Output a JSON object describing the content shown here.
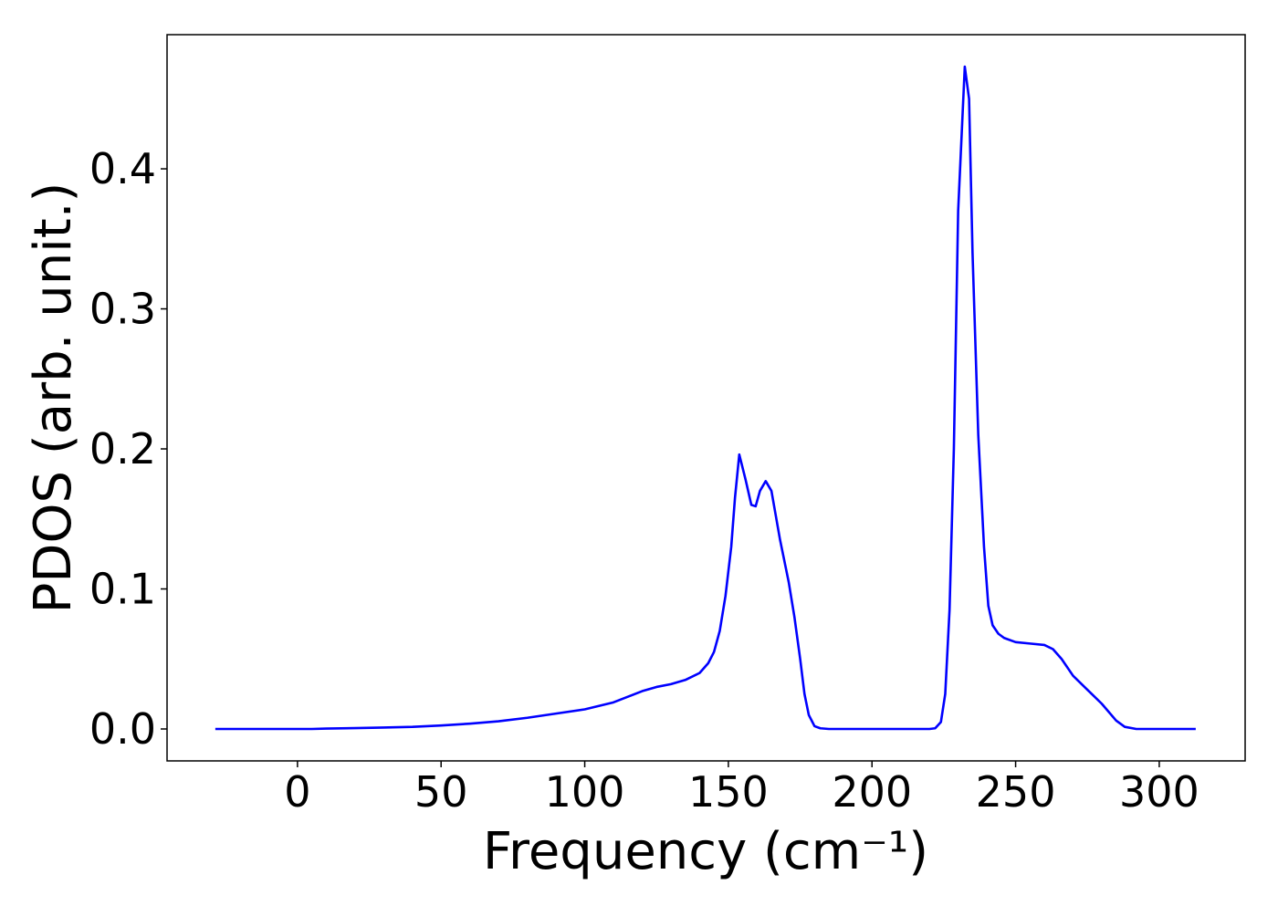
{
  "chart_data": {
    "type": "line",
    "xlabel": "Frequency (cm⁻¹)",
    "ylabel": "PDOS (arb. unit.)",
    "xlim": [
      -45.4,
      329.9
    ],
    "ylim": [
      -0.0228,
      0.4958
    ],
    "xticks": [
      0,
      50,
      100,
      150,
      200,
      250,
      300
    ],
    "yticks": [
      {
        "value": 0,
        "label": "0.0"
      },
      0.1,
      0.2,
      0.3,
      0.4
    ],
    "grid": false,
    "x": [
      -28.6,
      -10,
      0,
      5,
      10,
      20,
      30,
      40,
      50,
      60,
      70,
      80,
      90,
      100,
      110,
      115,
      120,
      125,
      130,
      135,
      140,
      143,
      145,
      147,
      149,
      151,
      152.3,
      153.8,
      156,
      158,
      159.5,
      161,
      163,
      165,
      168,
      171,
      173,
      175,
      176.5,
      178,
      180,
      182,
      185,
      200,
      220,
      222,
      224,
      225.5,
      227,
      228.5,
      230,
      232.3,
      233.8,
      235,
      237,
      239,
      240.5,
      242,
      244,
      246,
      250,
      255,
      260,
      263,
      266,
      270,
      275,
      280,
      285,
      288,
      292,
      312.7
    ],
    "series": [
      {
        "name": "PDOS",
        "color": "#0000ff",
        "values": [
          0,
          0,
          0,
          0,
          0.0003,
          0.0006,
          0.001,
          0.0015,
          0.0025,
          0.0038,
          0.0055,
          0.008,
          0.011,
          0.014,
          0.019,
          0.023,
          0.027,
          0.03,
          0.032,
          0.035,
          0.04,
          0.047,
          0.055,
          0.07,
          0.095,
          0.13,
          0.165,
          0.196,
          0.178,
          0.16,
          0.159,
          0.17,
          0.177,
          0.17,
          0.135,
          0.105,
          0.08,
          0.05,
          0.025,
          0.01,
          0.002,
          0.0005,
          0,
          0,
          0,
          0.0005,
          0.005,
          0.025,
          0.085,
          0.2,
          0.37,
          0.473,
          0.45,
          0.34,
          0.21,
          0.13,
          0.088,
          0.074,
          0.068,
          0.065,
          0.062,
          0.061,
          0.06,
          0.057,
          0.05,
          0.038,
          0.028,
          0.018,
          0.006,
          0.0015,
          0,
          0
        ]
      }
    ]
  }
}
